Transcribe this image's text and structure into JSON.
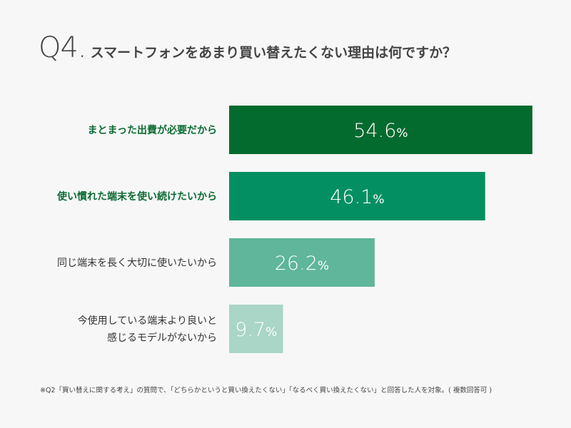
{
  "title": {
    "number": "Q4.",
    "text": "スマートフォンをあまり買い替えたくない理由は何ですか？"
  },
  "chart_data": {
    "type": "bar",
    "orientation": "horizontal",
    "categories": [
      [
        "まとまった出費が必要だから"
      ],
      [
        "使い慣れた端末を使い続けたいから"
      ],
      [
        "同じ端末を長く大切に使いたいから"
      ],
      [
        "今使用している端末より良いと",
        "感じるモデルがないから"
      ]
    ],
    "values": [
      54.6,
      46.1,
      26.2,
      9.7
    ],
    "value_unit": "%",
    "xlim": [
      0,
      55
    ],
    "colors": [
      "#046b2e",
      "#048f63",
      "#5fb69a",
      "#a9d6c6"
    ],
    "label_colors": [
      "#0b6b33",
      "#0b6b33",
      "#333333",
      "#333333"
    ],
    "label_bold": [
      true,
      true,
      false,
      false
    ]
  },
  "footnote": "※Q2「買い替えに関する考え」の質問で、「どちらかというと買い換えたくない」「なるべく買い換えたくない」と回答した人を対象。( 複数回答可 )"
}
